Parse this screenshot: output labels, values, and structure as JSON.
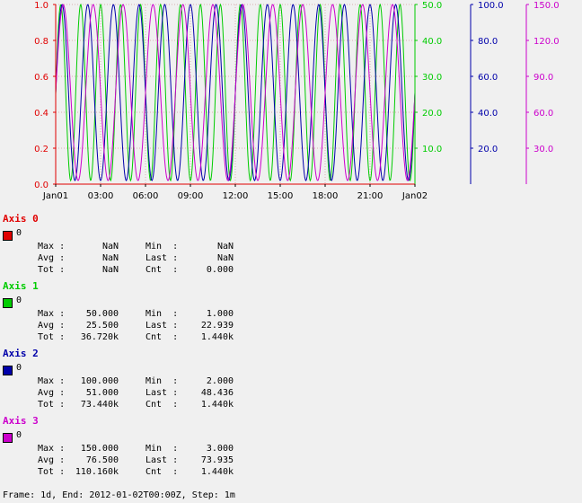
{
  "chart_data": {
    "type": "line",
    "x_ticks": [
      "Jan01",
      "03:00",
      "06:00",
      "09:00",
      "12:00",
      "15:00",
      "18:00",
      "21:00",
      "Jan02"
    ],
    "axes": [
      {
        "id": "axis0",
        "color": "#e00000",
        "ticks": [
          "0.0",
          "0.2",
          "0.4",
          "0.6",
          "0.8",
          "1.0"
        ],
        "ylim": [
          0,
          1
        ]
      },
      {
        "id": "axis1",
        "color": "#00cc00",
        "ticks": [
          "10.0",
          "20.0",
          "30.0",
          "40.0",
          "50.0"
        ],
        "ylim": [
          0,
          50
        ]
      },
      {
        "id": "axis2",
        "color": "#0000aa",
        "ticks": [
          "20.0",
          "40.0",
          "60.0",
          "80.0",
          "100.0"
        ],
        "ylim": [
          0,
          100
        ]
      },
      {
        "id": "axis3",
        "color": "#cc00cc",
        "ticks": [
          "30.0",
          "60.0",
          "90.0",
          "120.0",
          "150.0"
        ],
        "ylim": [
          0,
          150
        ]
      }
    ],
    "series": [
      {
        "axis": 1,
        "color": "#00cc00",
        "min": 1,
        "max": 50,
        "cycles": 18,
        "start": 25
      },
      {
        "axis": 2,
        "color": "#0000aa",
        "min": 2,
        "max": 100,
        "cycles": 14,
        "start": 51
      },
      {
        "axis": 3,
        "color": "#cc00cc",
        "min": 3,
        "max": 150,
        "cycles": 12,
        "start": 76
      }
    ],
    "grid": true
  },
  "legend": [
    {
      "title": "Axis 0",
      "color": "#e00000",
      "label": "0",
      "max": "NaN",
      "min": "NaN",
      "avg": "NaN",
      "last": "NaN",
      "tot": "NaN",
      "cnt": "0.000"
    },
    {
      "title": "Axis 1",
      "color": "#00cc00",
      "label": "0",
      "max": "50.000",
      "min": "1.000",
      "avg": "25.500",
      "last": "22.939",
      "tot": "36.720k",
      "cnt": "1.440k"
    },
    {
      "title": "Axis 2",
      "color": "#0000aa",
      "label": "0",
      "max": "100.000",
      "min": "2.000",
      "avg": "51.000",
      "last": "48.436",
      "tot": "73.440k",
      "cnt": "1.440k"
    },
    {
      "title": "Axis 3",
      "color": "#cc00cc",
      "label": "0",
      "max": "150.000",
      "min": "3.000",
      "avg": "76.500",
      "last": "73.935",
      "tot": "110.160k",
      "cnt": "1.440k"
    }
  ],
  "stat_labels": {
    "max": "Max :",
    "min": "Min  :",
    "avg": "Avg :",
    "last": "Last :",
    "tot": "Tot :",
    "cnt": "Cnt  :"
  },
  "footer": "Frame: 1d, End: 2012-01-02T00:00Z, Step: 1m"
}
